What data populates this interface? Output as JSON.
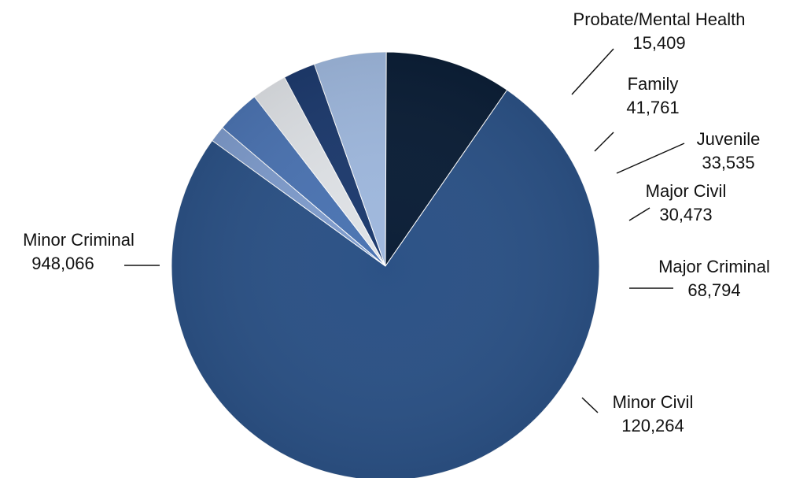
{
  "chart_data": {
    "type": "pie",
    "title": "",
    "legend": "none",
    "slices": [
      {
        "name": "Probate/Mental Health",
        "value_label": "15,409",
        "value": 15409,
        "color": "#7f9ccc"
      },
      {
        "name": "Family",
        "value_label": "41,761",
        "value": 41761,
        "color": "#4c74b2"
      },
      {
        "name": "Juvenile",
        "value_label": "33,535",
        "value": 33535,
        "color": "#dfe2e6"
      },
      {
        "name": "Major Civil",
        "value_label": "30,473",
        "value": 30473,
        "color": "#1e3b6e"
      },
      {
        "name": "Major Criminal",
        "value_label": "68,794",
        "value": 68794,
        "color": "#9fb8dd"
      },
      {
        "name": "Minor Civil",
        "value_label": "120,264",
        "value": 120264,
        "color": "#0c1f37"
      },
      {
        "name": "Minor Criminal",
        "value_label": "948,066",
        "value": 948066,
        "color": "#2c5286"
      }
    ]
  }
}
